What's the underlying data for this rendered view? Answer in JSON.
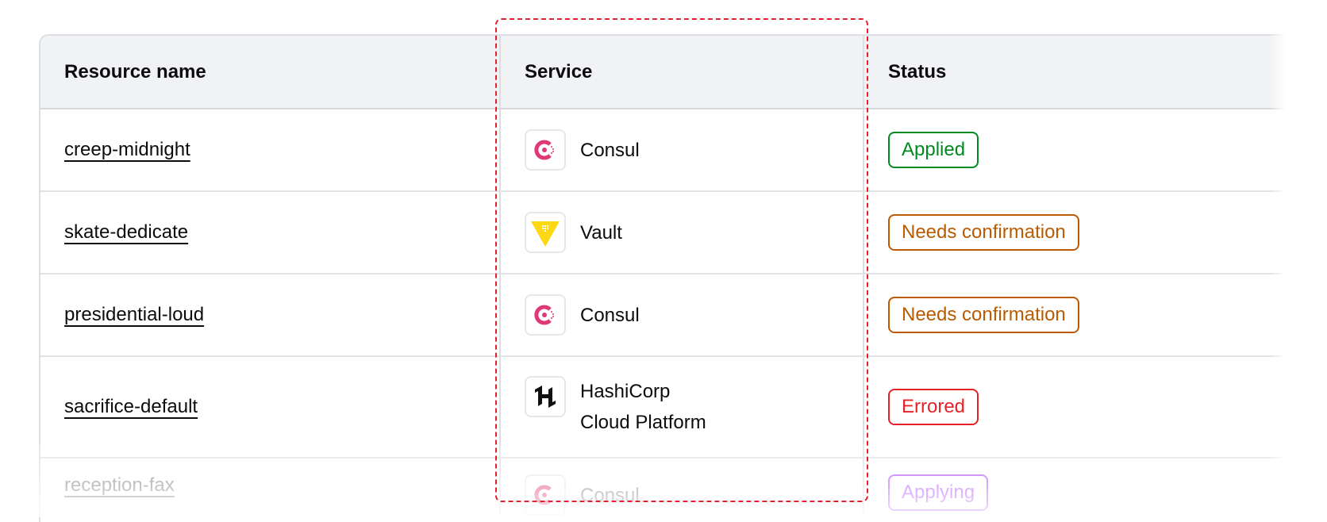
{
  "table": {
    "headers": [
      "Resource name",
      "Service",
      "Status"
    ],
    "rows": [
      {
        "name": "creep-midnight",
        "service": "Consul",
        "service_icon": "consul-icon",
        "status": "Applied",
        "status_color": "#008a22"
      },
      {
        "name": "skate-dedicate",
        "service": "Vault",
        "service_icon": "vault-icon",
        "status": "Needs confirmation",
        "status_color": "#bb5a00"
      },
      {
        "name": "presidential-loud",
        "service": "Consul",
        "service_icon": "consul-icon",
        "status": "Needs confirmation",
        "status_color": "#bb5a00"
      },
      {
        "name": "sacrifice-default",
        "service": "HashiCorp Cloud Platform",
        "service_line1": "HashiCorp",
        "service_line2": "Cloud Platform",
        "service_icon": "hcp-icon",
        "status": "Errored",
        "status_color": "#e52228"
      },
      {
        "name": "reception-fax",
        "service": "Consul",
        "service_icon": "consul-icon",
        "status": "Applying",
        "status_color": "#a737ff"
      }
    ]
  },
  "colors": {
    "consul": "#e03875",
    "vault": "#ffd814",
    "highlight": "#e5202e"
  }
}
